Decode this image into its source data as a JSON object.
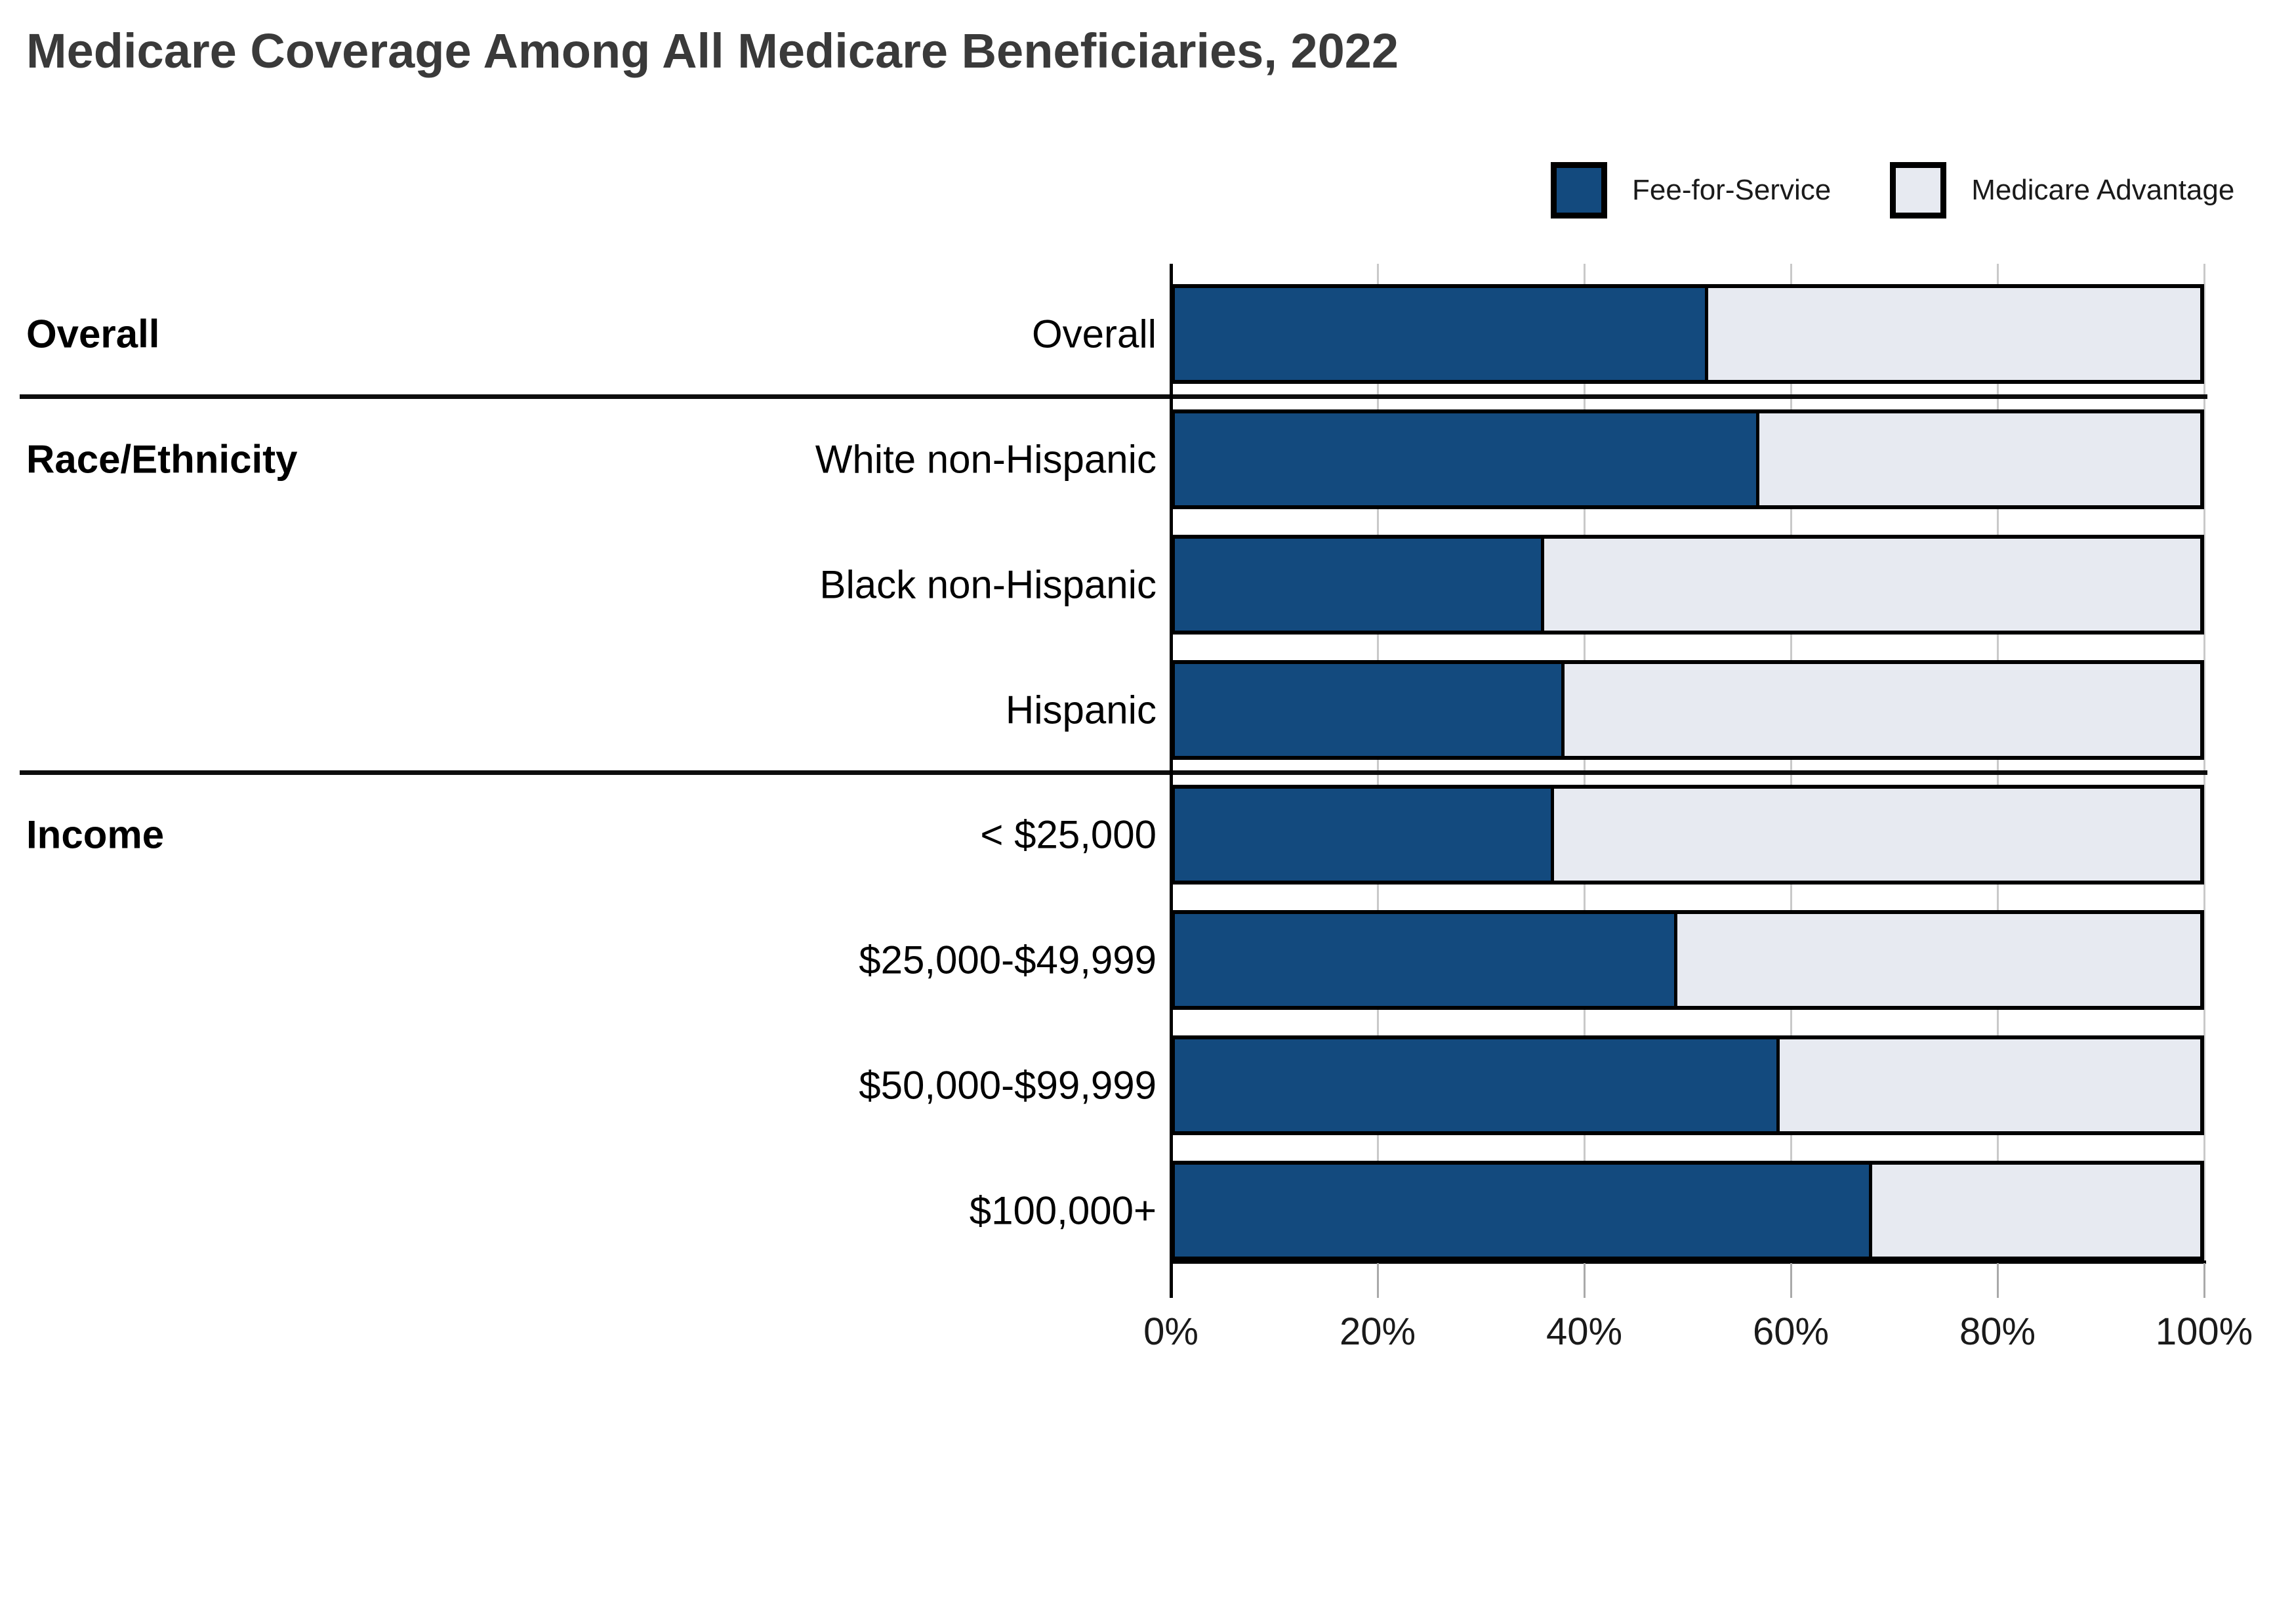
{
  "title": "Medicare Coverage Among All Medicare Beneficiaries, 2022",
  "legend": {
    "items": [
      {
        "label": "Fee-for-Service",
        "color": "#134a7e"
      },
      {
        "label": "Medicare Advantage",
        "color": "#e7eaf1"
      }
    ]
  },
  "chart_data": {
    "type": "bar",
    "orientation": "horizontal",
    "stacked": true,
    "title": "Medicare Coverage Among All Medicare Beneficiaries, 2022",
    "xlabel": "",
    "ylabel": "",
    "xlim": [
      0,
      100
    ],
    "x_tick_labels": [
      "0%",
      "20%",
      "40%",
      "60%",
      "80%",
      "100%"
    ],
    "x_tick_values": [
      0,
      20,
      40,
      60,
      80,
      100
    ],
    "grid": true,
    "legend_position": "top-right",
    "groups": [
      {
        "label": "Overall",
        "categories": [
          "Overall"
        ]
      },
      {
        "label": "Race/Ethnicity",
        "categories": [
          "White non-Hispanic",
          "Black non-Hispanic",
          "Hispanic"
        ]
      },
      {
        "label": "Income",
        "categories": [
          "< $25,000",
          "$25,000-$49,999",
          "$50,000-$99,999",
          "$100,000+"
        ]
      }
    ],
    "categories": [
      "Overall",
      "White non-Hispanic",
      "Black non-Hispanic",
      "Hispanic",
      "< $25,000",
      "$25,000-$49,999",
      "$50,000-$99,999",
      "$100,000+"
    ],
    "series": [
      {
        "name": "Fee-for-Service",
        "color": "#134a7e",
        "values": [
          52,
          57,
          36,
          38,
          37,
          49,
          59,
          68
        ]
      },
      {
        "name": "Medicare Advantage",
        "color": "#e7eaf1",
        "values": [
          48,
          43,
          64,
          62,
          63,
          51,
          41,
          32
        ]
      }
    ]
  }
}
